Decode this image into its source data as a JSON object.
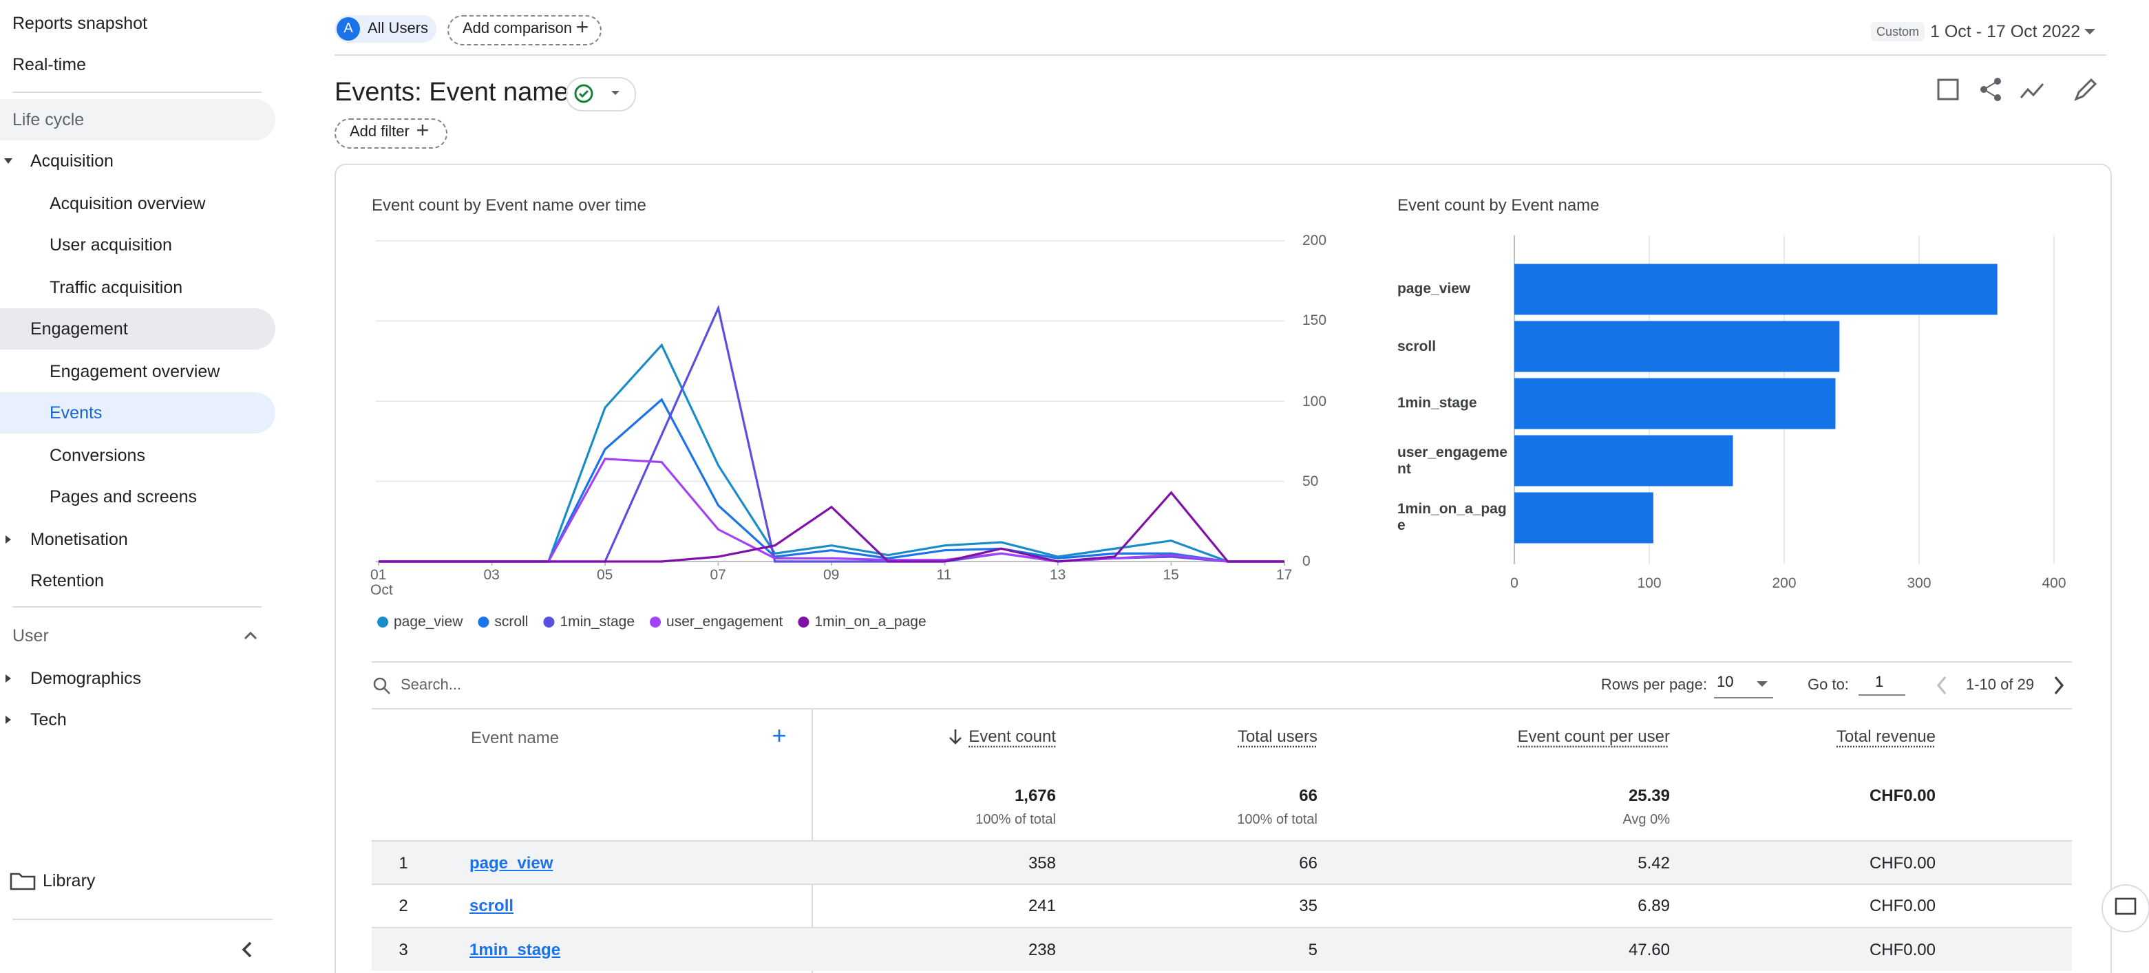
{
  "sidebar": {
    "items": [
      "Reports snapshot",
      "Real-time",
      "Life cycle",
      "Acquisition",
      "Acquisition overview",
      "User acquisition",
      "Traffic acquisition",
      "Engagement",
      "Engagement overview",
      "Events",
      "Conversions",
      "Pages and screens",
      "Monetisation",
      "Retention",
      "User",
      "Demographics",
      "Tech"
    ],
    "library": "Library"
  },
  "header": {
    "segment_badge": "A",
    "segment": "All Users",
    "add_comparison": "Add comparison",
    "date_type": "Custom",
    "date_range": "1 Oct - 17 Oct 2022"
  },
  "title": "Events: Event name",
  "add_filter": "Add filter",
  "chart_data": [
    {
      "type": "line",
      "title": "Event count by Event name over time",
      "x": [
        1,
        2,
        3,
        4,
        5,
        6,
        7,
        8,
        9,
        10,
        11,
        12,
        13,
        14,
        15,
        16,
        17
      ],
      "xlim": [
        1,
        17
      ],
      "xticks": [
        {
          "value": 1,
          "label": "01 Oct"
        },
        {
          "value": 3,
          "label": "03"
        },
        {
          "value": 5,
          "label": "05"
        },
        {
          "value": 7,
          "label": "07"
        },
        {
          "value": 9,
          "label": "09"
        },
        {
          "value": 11,
          "label": "11"
        },
        {
          "value": 13,
          "label": "13"
        },
        {
          "value": 15,
          "label": "15"
        },
        {
          "value": 17,
          "label": "17"
        }
      ],
      "ylim": [
        0,
        200
      ],
      "yticks": [
        0,
        50,
        100,
        150,
        200
      ],
      "grid": true,
      "series": [
        {
          "name": "page_view",
          "color": "#1a8cc8",
          "values": [
            0,
            0,
            0,
            0,
            96,
            135,
            60,
            5,
            10,
            4,
            10,
            12,
            3,
            8,
            13,
            0,
            0
          ]
        },
        {
          "name": "scroll",
          "color": "#1a73e8",
          "values": [
            0,
            0,
            0,
            0,
            70,
            101,
            35,
            3,
            7,
            2,
            7,
            8,
            2,
            5,
            5,
            0,
            0
          ]
        },
        {
          "name": "1min_stage",
          "color": "#5b4fe0",
          "values": [
            0,
            0,
            0,
            0,
            0,
            79,
            158,
            0,
            0,
            0,
            0,
            5,
            0,
            2,
            3,
            0,
            0
          ]
        },
        {
          "name": "user_engagement",
          "color": "#a142f4",
          "values": [
            0,
            0,
            0,
            0,
            64,
            62,
            20,
            2,
            2,
            1,
            1,
            5,
            0,
            2,
            4,
            0,
            0
          ]
        },
        {
          "name": "1min_on_a_page",
          "color": "#8011a8",
          "values": [
            0,
            0,
            0,
            0,
            0,
            0,
            3,
            10,
            34,
            0,
            0,
            8,
            0,
            3,
            43,
            0,
            0
          ]
        }
      ]
    },
    {
      "type": "bar",
      "orientation": "horizontal",
      "title": "Event count by Event name",
      "categories": [
        "page_view",
        "scroll",
        "1min_stage",
        "user_engagement",
        "1min_on_a_page"
      ],
      "values": [
        358,
        241,
        238,
        162,
        103
      ],
      "color": "#1473e6",
      "xlim": [
        0,
        400
      ],
      "xticks": [
        0,
        100,
        200,
        300,
        400
      ],
      "grid": true
    }
  ],
  "table": {
    "search_placeholder": "Search...",
    "rows_per_page_label": "Rows per page:",
    "rows_per_page": "10",
    "go_to_label": "Go to:",
    "go_to": "1",
    "pagination": "1-10 of 29",
    "columns": [
      "Event name",
      "Event count",
      "Total users",
      "Event count per user",
      "Total revenue"
    ],
    "totals": [
      {
        "value": "1,676",
        "sub": "100% of total"
      },
      {
        "value": "66",
        "sub": "100% of total"
      },
      {
        "value": "25.39",
        "sub": "Avg 0%"
      },
      {
        "value": "CHF0.00"
      }
    ],
    "rows": [
      [
        "1",
        "page_view",
        "358",
        "66",
        "5.42",
        "CHF0.00"
      ],
      [
        "2",
        "scroll",
        "241",
        "35",
        "6.89",
        "CHF0.00"
      ],
      [
        "3",
        "1min_stage",
        "238",
        "5",
        "47.60",
        "CHF0.00"
      ]
    ]
  }
}
